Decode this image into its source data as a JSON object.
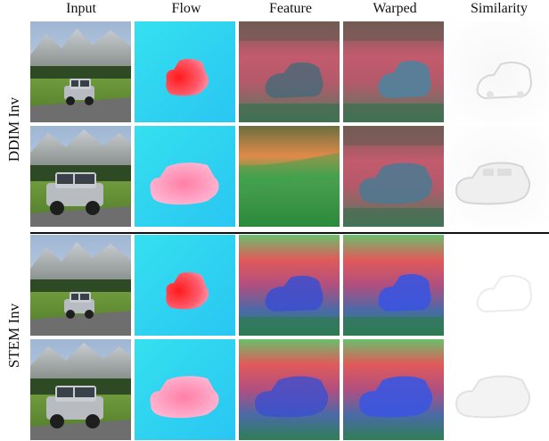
{
  "columns": [
    {
      "label": "Input"
    },
    {
      "label": "Flow"
    },
    {
      "label": "Feature"
    },
    {
      "label": "Warped"
    },
    {
      "label": "Similarity"
    }
  ],
  "row_groups": [
    {
      "label": "DDIM Inv"
    },
    {
      "label": "STEM Inv"
    }
  ]
}
